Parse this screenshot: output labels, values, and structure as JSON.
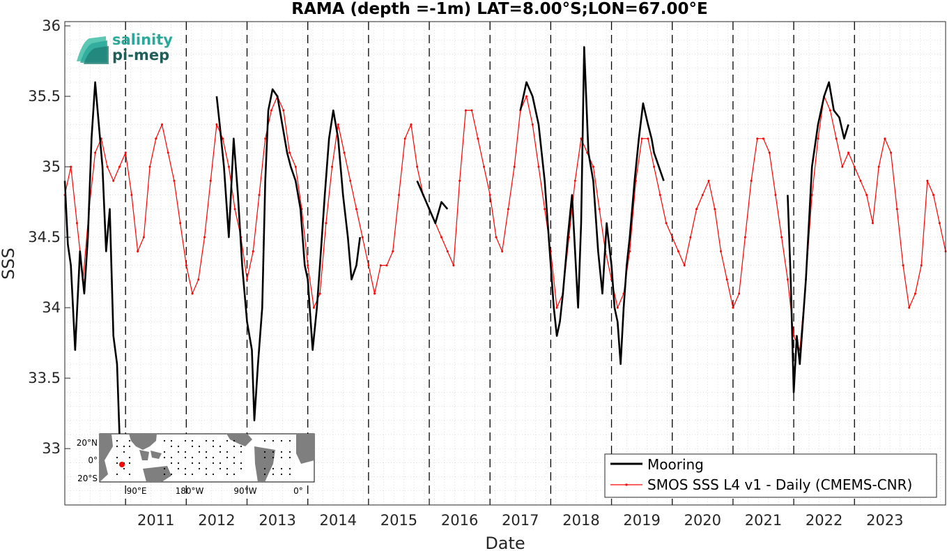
{
  "chart_data": {
    "type": "line",
    "title": "RAMA (depth =-1m) LAT=8.00°S;LON=67.00°E",
    "xlabel": "Date",
    "ylabel": "SSS",
    "xlim": [
      "2010-01-01",
      "2024-07-01"
    ],
    "ylim": [
      32.6,
      36.03
    ],
    "x_ticks": [
      "2011",
      "2012",
      "2013",
      "2014",
      "2015",
      "2016",
      "2017",
      "2018",
      "2019",
      "2020",
      "2021",
      "2022",
      "2023"
    ],
    "y_ticks": [
      "33",
      "33.5",
      "34",
      "34.5",
      "35",
      "35.5",
      "36"
    ],
    "grid": "minor dotted",
    "vertical_dashed_lines_at_years": [
      2011,
      2012,
      2013,
      2014,
      2015,
      2016,
      2017,
      2018,
      2019,
      2020,
      2021,
      2022,
      2023
    ],
    "legend_position": "bottom-right",
    "series": [
      {
        "name": "Mooring",
        "color": "#000000",
        "style": "thick line",
        "segments": [
          {
            "x": [
              2010.0,
              2010.05,
              2010.1,
              2010.17,
              2010.25,
              2010.32,
              2010.38,
              2010.44,
              2010.5,
              2010.56,
              2010.62,
              2010.68,
              2010.74,
              2010.8,
              2010.86,
              2010.9
            ],
            "y": [
              34.9,
              34.45,
              34.3,
              33.7,
              34.4,
              34.1,
              34.5,
              35.2,
              35.6,
              35.3,
              35.0,
              34.4,
              34.7,
              33.8,
              33.6,
              33.1
            ]
          },
          {
            "x": [
              2012.5,
              2012.55,
              2012.62,
              2012.7,
              2012.78,
              2012.85,
              2012.92,
              2013.0,
              2013.08,
              2013.12,
              2013.18,
              2013.25,
              2013.3,
              2013.35,
              2013.42,
              2013.5,
              2013.58,
              2013.66,
              2013.72,
              2013.8,
              2013.88,
              2013.95,
              2014.0,
              2014.08,
              2014.15,
              2014.2,
              2014.28,
              2014.35,
              2014.42,
              2014.5,
              2014.58,
              2014.66,
              2014.72,
              2014.8,
              2014.86
            ],
            "y": [
              35.5,
              35.3,
              35.0,
              34.5,
              35.2,
              34.8,
              34.3,
              33.9,
              33.7,
              33.2,
              33.6,
              34.0,
              34.9,
              35.4,
              35.55,
              35.5,
              35.3,
              35.1,
              35.0,
              34.9,
              34.7,
              34.3,
              34.2,
              33.7,
              34.0,
              34.3,
              34.8,
              35.2,
              35.4,
              35.2,
              34.8,
              34.5,
              34.2,
              34.3,
              34.5
            ]
          },
          {
            "x": [
              2015.8,
              2015.9,
              2016.0,
              2016.1,
              2016.2,
              2016.3
            ],
            "y": [
              34.9,
              34.8,
              34.7,
              34.6,
              34.75,
              34.7
            ]
          },
          {
            "x": [
              2017.5,
              2017.6,
              2017.7,
              2017.8,
              2017.9,
              2018.0,
              2018.05,
              2018.1,
              2018.15,
              2018.2,
              2018.28,
              2018.35,
              2018.4,
              2018.45,
              2018.5,
              2018.55,
              2018.62,
              2018.7,
              2018.78,
              2018.85,
              2018.92,
              2019.0,
              2019.05,
              2019.1,
              2019.15,
              2019.2,
              2019.25,
              2019.3,
              2019.38,
              2019.45,
              2019.52,
              2019.6,
              2019.66,
              2019.7,
              2019.78,
              2019.86
            ],
            "y": [
              35.4,
              35.6,
              35.5,
              35.3,
              34.9,
              34.3,
              34.0,
              33.8,
              33.9,
              34.1,
              34.5,
              34.8,
              34.4,
              34.0,
              34.6,
              35.85,
              35.1,
              34.9,
              34.4,
              34.1,
              34.6,
              34.3,
              34.0,
              33.9,
              33.6,
              34.0,
              34.3,
              34.5,
              34.9,
              35.2,
              35.45,
              35.3,
              35.2,
              35.1,
              35.0,
              34.9
            ]
          },
          {
            "x": [
              2021.9,
              2021.95,
              2022.0,
              2022.05,
              2022.1,
              2022.15,
              2022.2,
              2022.3,
              2022.4,
              2022.5,
              2022.58,
              2022.66,
              2022.75,
              2022.83,
              2022.9
            ],
            "y": [
              34.8,
              34.2,
              33.4,
              33.8,
              33.6,
              33.9,
              34.2,
              35.0,
              35.3,
              35.5,
              35.6,
              35.4,
              35.35,
              35.2,
              35.3
            ]
          }
        ]
      },
      {
        "name": "SMOS SSS L4 v1 - Daily (CMEMS-CNR)",
        "color": "#ff0000",
        "style": "thin line with point markers",
        "x": [
          2010.0,
          2010.1,
          2010.2,
          2010.3,
          2010.4,
          2010.5,
          2010.6,
          2010.7,
          2010.8,
          2010.9,
          2011.0,
          2011.1,
          2011.2,
          2011.3,
          2011.4,
          2011.5,
          2011.6,
          2011.7,
          2011.8,
          2011.9,
          2012.0,
          2012.1,
          2012.2,
          2012.3,
          2012.4,
          2012.5,
          2012.6,
          2012.7,
          2012.8,
          2012.9,
          2013.0,
          2013.1,
          2013.2,
          2013.3,
          2013.4,
          2013.5,
          2013.6,
          2013.7,
          2013.8,
          2013.9,
          2014.0,
          2014.1,
          2014.2,
          2014.3,
          2014.4,
          2014.5,
          2014.6,
          2014.7,
          2014.8,
          2014.9,
          2015.0,
          2015.1,
          2015.2,
          2015.3,
          2015.4,
          2015.5,
          2015.6,
          2015.7,
          2015.8,
          2015.9,
          2016.0,
          2016.1,
          2016.2,
          2016.3,
          2016.4,
          2016.5,
          2016.6,
          2016.7,
          2016.8,
          2016.9,
          2017.0,
          2017.1,
          2017.2,
          2017.3,
          2017.4,
          2017.5,
          2017.6,
          2017.7,
          2017.8,
          2017.9,
          2018.0,
          2018.1,
          2018.2,
          2018.3,
          2018.4,
          2018.5,
          2018.6,
          2018.7,
          2018.8,
          2018.9,
          2019.0,
          2019.1,
          2019.2,
          2019.3,
          2019.4,
          2019.5,
          2019.6,
          2019.7,
          2019.8,
          2019.9,
          2020.0,
          2020.1,
          2020.2,
          2020.3,
          2020.4,
          2020.5,
          2020.6,
          2020.7,
          2020.8,
          2020.9,
          2021.0,
          2021.1,
          2021.2,
          2021.3,
          2021.4,
          2021.5,
          2021.6,
          2021.7,
          2021.8,
          2021.9,
          2022.0,
          2022.1,
          2022.2,
          2022.3,
          2022.4,
          2022.5,
          2022.6,
          2022.7,
          2022.8,
          2022.9,
          2023.0,
          2023.1,
          2023.2,
          2023.3,
          2023.4,
          2023.5,
          2023.6,
          2023.7,
          2023.8,
          2023.9,
          2024.0,
          2024.1,
          2024.2,
          2024.3,
          2024.4,
          2024.5
        ],
        "y": [
          34.8,
          35.0,
          34.6,
          34.2,
          34.7,
          35.1,
          35.2,
          35.0,
          34.9,
          35.0,
          35.1,
          34.8,
          34.4,
          34.5,
          35.0,
          35.2,
          35.3,
          35.1,
          34.9,
          34.6,
          34.3,
          34.1,
          34.2,
          34.5,
          34.9,
          35.3,
          35.2,
          35.0,
          34.7,
          34.5,
          34.2,
          34.4,
          34.8,
          35.2,
          35.4,
          35.5,
          35.4,
          35.1,
          35.0,
          34.7,
          34.3,
          34.0,
          34.1,
          34.6,
          35.0,
          35.3,
          35.1,
          34.9,
          34.7,
          34.5,
          34.3,
          34.1,
          34.3,
          34.3,
          34.4,
          34.8,
          35.2,
          35.3,
          35.0,
          34.8,
          34.7,
          34.6,
          34.5,
          34.4,
          34.3,
          34.9,
          35.4,
          35.4,
          35.2,
          35.0,
          34.8,
          34.5,
          34.4,
          34.7,
          35.0,
          35.4,
          35.5,
          35.3,
          35.0,
          34.7,
          34.4,
          34.0,
          34.1,
          34.5,
          34.9,
          35.2,
          35.1,
          35.0,
          34.7,
          34.4,
          34.2,
          34.0,
          34.1,
          34.4,
          34.9,
          35.2,
          35.2,
          35.0,
          34.8,
          34.6,
          34.5,
          34.4,
          34.3,
          34.5,
          34.7,
          34.8,
          34.9,
          34.7,
          34.4,
          34.2,
          34.0,
          34.1,
          34.5,
          34.9,
          35.2,
          35.2,
          35.1,
          34.8,
          34.5,
          34.2,
          33.8,
          33.7,
          34.2,
          34.8,
          35.2,
          35.5,
          35.4,
          35.2,
          35.0,
          35.1,
          35.0,
          34.9,
          34.8,
          34.6,
          35.0,
          35.2,
          35.1,
          34.7,
          34.3,
          34.0,
          34.1,
          34.3,
          34.9,
          34.8,
          34.6,
          34.4
        ]
      }
    ]
  },
  "logo": {
    "line1": "salinity",
    "line2": "pi-mep"
  },
  "inset_map": {
    "lat_labels": [
      "20°N",
      "0°",
      "20°S"
    ],
    "lon_labels": [
      "90°E",
      "180°W",
      "90°W",
      "0°"
    ],
    "land_color": "#7f7f7f",
    "ocean_color": "#ffffff",
    "site_marker_color": "#ff0000"
  }
}
